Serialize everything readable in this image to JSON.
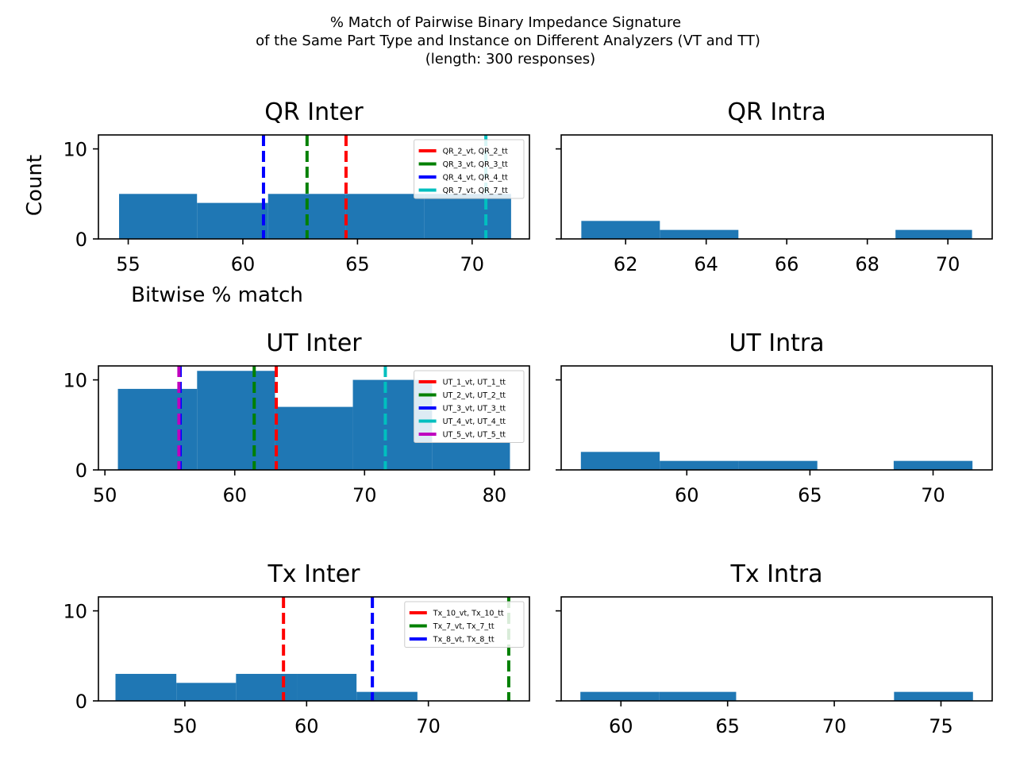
{
  "figure": {
    "suptitle_lines": [
      "% Match of Pairwise Binary Impedance Signature",
      "of the Same Part Type and Instance on Different Analyzers (VT and TT)",
      "(length: 300 responses)"
    ]
  },
  "chart_data": [
    {
      "type": "histogram",
      "title": "QR Inter",
      "xlabel": "Bitwise % match",
      "ylabel": "Count",
      "xlim": [
        53.7,
        72.5
      ],
      "ylim": [
        0,
        11.55
      ],
      "xticks": [
        55,
        60,
        65,
        70
      ],
      "yticks": [
        0,
        10
      ],
      "bin_edges": [
        54.6,
        58.0,
        61.1,
        64.5,
        67.9,
        71.7
      ],
      "counts": [
        5,
        4,
        5,
        5,
        5
      ],
      "bar_color": "#1f77b4",
      "vlines": [
        {
          "name": "QR_2_vt, QR_2_tt",
          "x": 64.5,
          "color": "#ff0000"
        },
        {
          "name": "QR_3_vt, QR_3_tt",
          "x": 62.8,
          "color": "#008000"
        },
        {
          "name": "QR_4_vt, QR_4_tt",
          "x": 60.9,
          "color": "#0000ff"
        },
        {
          "name": "QR_7_vt, QR_7_tt",
          "x": 70.6,
          "color": "#00bfbf"
        }
      ],
      "legend": "upper right"
    },
    {
      "type": "histogram",
      "title": "QR Intra",
      "xlim": [
        60.4,
        71.1
      ],
      "ylim": [
        0,
        11.55
      ],
      "xticks": [
        62,
        64,
        66,
        68,
        70
      ],
      "yticks": [
        0,
        10
      ],
      "show_ytick_labels": false,
      "bin_edges": [
        60.9,
        62.85,
        64.8,
        66.75,
        68.7,
        70.6
      ],
      "counts": [
        2,
        1,
        0,
        0,
        1
      ],
      "bar_color": "#1f77b4"
    },
    {
      "type": "histogram",
      "title": "UT Inter",
      "xlim": [
        49.5,
        82.7
      ],
      "ylim": [
        0,
        11.55
      ],
      "xticks": [
        50,
        60,
        70,
        80
      ],
      "yticks": [
        0,
        10
      ],
      "bin_edges": [
        51.0,
        57.1,
        63.1,
        69.1,
        75.2,
        81.2
      ],
      "counts": [
        9,
        11,
        7,
        10,
        3
      ],
      "bar_color": "#1f77b4",
      "vlines": [
        {
          "name": "UT_1_vt, UT_1_tt",
          "x": 63.2,
          "color": "#ff0000"
        },
        {
          "name": "UT_2_vt, UT_2_tt",
          "x": 61.5,
          "color": "#008000"
        },
        {
          "name": "UT_3_vt, UT_3_tt",
          "x": 55.8,
          "color": "#0000ff"
        },
        {
          "name": "UT_4_vt, UT_4_tt",
          "x": 71.6,
          "color": "#00bfbf"
        },
        {
          "name": "UT_5_vt, UT_5_tt",
          "x": 55.7,
          "color": "#bf00bf"
        }
      ],
      "legend": "upper right"
    },
    {
      "type": "histogram",
      "title": "UT Intra",
      "xlim": [
        54.9,
        72.4
      ],
      "ylim": [
        0,
        11.55
      ],
      "xticks": [
        60,
        65,
        70
      ],
      "yticks": [
        0,
        10
      ],
      "show_ytick_labels": false,
      "bin_edges": [
        55.7,
        58.9,
        62.1,
        65.3,
        68.4,
        71.6
      ],
      "counts": [
        2,
        1,
        1,
        0,
        1
      ],
      "bar_color": "#1f77b4"
    },
    {
      "type": "histogram",
      "title": "Tx Inter",
      "xlim": [
        42.9,
        78.3
      ],
      "ylim": [
        0,
        11.55
      ],
      "xticks": [
        50,
        60,
        70
      ],
      "yticks": [
        0,
        10
      ],
      "bin_edges": [
        44.3,
        49.3,
        54.2,
        59.2,
        64.1,
        69.1
      ],
      "counts": [
        3,
        2,
        3,
        3,
        1
      ],
      "bar_color": "#1f77b4",
      "vlines": [
        {
          "name": "Tx_10_vt, Tx_10_tt",
          "x": 58.1,
          "color": "#ff0000"
        },
        {
          "name": "Tx_7_vt, Tx_7_tt",
          "x": 76.6,
          "color": "#008000"
        },
        {
          "name": "Tx_8_vt, Tx_8_tt",
          "x": 65.4,
          "color": "#0000ff"
        }
      ],
      "legend": "upper right"
    },
    {
      "type": "histogram",
      "title": "Tx Intra",
      "xlim": [
        57.2,
        77.4
      ],
      "ylim": [
        0,
        11.55
      ],
      "xticks": [
        60,
        65,
        70,
        75
      ],
      "yticks": [
        0,
        10
      ],
      "show_ytick_labels": false,
      "bin_edges": [
        58.1,
        61.8,
        65.4,
        69.1,
        72.8,
        76.5
      ],
      "counts": [
        1,
        1,
        0,
        0,
        1
      ],
      "bar_color": "#1f77b4"
    }
  ]
}
